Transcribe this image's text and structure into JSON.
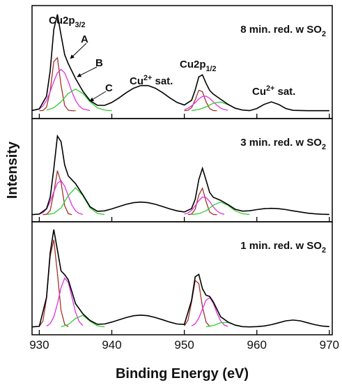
{
  "chart_data": [
    {
      "type": "line",
      "label": {
        "text": "8 min. red. w SO",
        "sub": "2"
      },
      "annotations": [
        {
          "text": "Cu2p",
          "sub": "3/2"
        },
        "A",
        "B",
        "C",
        {
          "text": "Cu",
          "sup": "2+",
          "after": " sat."
        },
        {
          "text": "Cu2p",
          "sub": "1/2"
        },
        {
          "text": "Cu",
          "sup": "2+",
          "after": " sat."
        }
      ],
      "xlim": [
        929,
        970.4
      ],
      "ylim": [
        0,
        115
      ],
      "series": [
        {
          "color": "#000000",
          "x": [
            928,
            929,
            930,
            931,
            931.5,
            932,
            932.5,
            933,
            933.5,
            934,
            935,
            936,
            937,
            938,
            939,
            940,
            941,
            942,
            943,
            944,
            945,
            946,
            947,
            948,
            949,
            950,
            951,
            951.5,
            952,
            952.5,
            953,
            953.5,
            954,
            955,
            956,
            957,
            958,
            959,
            960,
            961,
            962,
            963,
            964,
            965,
            966,
            967,
            968,
            969,
            970
          ],
          "values": [
            8,
            8.2,
            9.8,
            22.7,
            48.5,
            90.7,
            106,
            85,
            65,
            55.8,
            40.7,
            27.9,
            18.3,
            13.5,
            13.4,
            16.4,
            21.1,
            26.4,
            30.9,
            33.6,
            33.6,
            30.9,
            26.4,
            21.1,
            16.4,
            13.8,
            18.6,
            29.1,
            42.5,
            44.5,
            35.9,
            28.6,
            24.9,
            19.7,
            14.6,
            10.6,
            8.7,
            8.1,
            10.2,
            14.4,
            17,
            14.4,
            10.2,
            8.4,
            8.2,
            8,
            8,
            8,
            8
          ]
        },
        {
          "color": "#a0332a",
          "x": [
            930,
            930.5,
            931,
            931.5,
            932,
            932.5,
            933,
            933.5,
            934,
            934.5,
            935
          ],
          "values": [
            8,
            8.3,
            11.6,
            28,
            58,
            62,
            34,
            13.4,
            8.5,
            8,
            8
          ]
        },
        {
          "color": "#e030e0",
          "x": [
            929,
            930,
            930.5,
            931,
            931.5,
            932,
            932.5,
            933,
            933.5,
            934,
            934.5,
            935,
            935.5,
            936,
            937
          ],
          "values": [
            8.2,
            9.8,
            12.8,
            18.5,
            27.2,
            37.7,
            46.5,
            50,
            46.5,
            37.7,
            27.2,
            18.5,
            12.8,
            9.8,
            8.2
          ]
        },
        {
          "color": "#33cc33",
          "x": [
            931,
            932,
            933,
            934,
            935,
            936,
            937,
            938,
            939,
            940
          ],
          "values": [
            8.6,
            11,
            17,
            25.6,
            30,
            25.6,
            17,
            11,
            8.6,
            8
          ]
        },
        {
          "color": "#a0332a",
          "x": [
            950,
            950.5,
            951,
            951.5,
            952,
            952.5,
            953,
            953.5,
            954,
            954.5
          ],
          "values": [
            8,
            8.4,
            11,
            19.1,
            28.8,
            27.4,
            17,
            10.1,
            8.2,
            8
          ]
        },
        {
          "color": "#e030e0",
          "x": [
            950,
            950.5,
            951,
            951.5,
            952,
            952.5,
            953,
            953.5,
            954,
            954.5,
            955,
            955.5,
            956
          ],
          "values": [
            9,
            10.4,
            12.9,
            16.3,
            20,
            22.5,
            22.8,
            20.6,
            17.1,
            13.5,
            10.8,
            9.2,
            8.4
          ]
        },
        {
          "color": "#33cc33",
          "x": [
            951,
            952,
            953,
            954,
            955,
            956,
            957,
            958,
            959
          ],
          "values": [
            8.2,
            9.2,
            11.9,
            15.6,
            16.9,
            14.2,
            10.6,
            8.7,
            8.1
          ]
        }
      ]
    },
    {
      "type": "line",
      "label": {
        "text": "3 min. red. w SO",
        "sub": "2"
      },
      "ylabel": "Intensity",
      "xlim": [
        929,
        970.4
      ],
      "ylim": [
        0,
        115
      ],
      "series": [
        {
          "color": "#000000",
          "x": [
            928,
            929,
            930,
            931,
            931.5,
            932,
            932.5,
            933,
            933.5,
            934,
            935,
            936,
            937,
            938,
            939,
            940,
            941,
            942,
            943,
            944,
            945,
            946,
            947,
            948,
            949,
            950,
            951,
            951.5,
            952,
            952.5,
            953,
            953.5,
            954,
            955,
            956,
            957,
            958,
            959,
            960,
            961,
            962,
            963,
            964,
            965,
            966,
            967,
            968,
            969,
            970
          ],
          "values": [
            8,
            8,
            8.6,
            14.6,
            27.1,
            58.9,
            95.5,
            89.3,
            63.3,
            51.1,
            42.5,
            30.1,
            16.8,
            11.7,
            12.2,
            14.4,
            17,
            19.5,
            21.3,
            22,
            21.3,
            19.5,
            17,
            14.4,
            12.2,
            10.9,
            14.7,
            24.9,
            47,
            59.6,
            46.3,
            32.6,
            27.3,
            23.9,
            19.3,
            14,
            11.9,
            12.3,
            13.6,
            14.6,
            15,
            14.6,
            13.6,
            12.2,
            10.9,
            9.7,
            8.9,
            8.4,
            8.2
          ]
        },
        {
          "color": "#a0332a",
          "x": [
            930.5,
            931,
            931.5,
            932,
            932.5,
            933,
            933.5,
            934,
            934.5
          ],
          "values": [
            8,
            8.3,
            12.4,
            32.3,
            57,
            44,
            17.9,
            9,
            8
          ]
        },
        {
          "color": "#e030e0",
          "x": [
            930,
            930.5,
            931,
            931.5,
            932,
            932.5,
            933,
            933.5,
            934,
            934.5,
            935,
            935.5,
            936
          ],
          "values": [
            8.6,
            10.1,
            14.2,
            22.3,
            33.3,
            43.1,
            45.8,
            39.7,
            28.9,
            18.5,
            12.2,
            9.3,
            8.3
          ]
        },
        {
          "color": "#33cc33",
          "x": [
            931,
            932,
            933,
            934,
            935,
            936,
            937,
            938,
            939
          ],
          "values": [
            8.1,
            9.3,
            15.5,
            29.2,
            38,
            29.2,
            15.5,
            9.3,
            8.1
          ]
        },
        {
          "color": "#a0332a",
          "x": [
            950.5,
            951,
            951.5,
            952,
            952.5,
            953,
            953.5,
            954,
            954.5
          ],
          "values": [
            8,
            8.6,
            13.9,
            29.8,
            37.4,
            22.6,
            10.7,
            8.2,
            8
          ]
        },
        {
          "color": "#e030e0",
          "x": [
            950,
            950.5,
            951,
            951.5,
            952,
            952.5,
            953,
            953.5,
            954,
            954.5,
            955,
            955.5
          ],
          "values": [
            8.5,
            9.8,
            12.7,
            17.7,
            23.6,
            27.6,
            27.1,
            22.5,
            16.6,
            12,
            9.4,
            8.4
          ]
        },
        {
          "color": "#33cc33",
          "x": [
            951,
            952,
            953,
            954,
            955,
            956,
            957,
            958,
            959
          ],
          "values": [
            8.1,
            9,
            12.3,
            18.4,
            22,
            18.4,
            12.3,
            9,
            8.1
          ]
        }
      ]
    },
    {
      "type": "line",
      "label": {
        "text": "1 min. red. w SO",
        "sub": "2"
      },
      "xlabel": "Binding Energy (eV)",
      "xlim": [
        929,
        970.4
      ],
      "ylim": [
        0,
        115
      ],
      "xticks": [
        930,
        940,
        950,
        960,
        970
      ],
      "series": [
        {
          "color": "#000000",
          "x": [
            928,
            929,
            930,
            931,
            931.5,
            932,
            932.5,
            933,
            933.5,
            934,
            935,
            936,
            937,
            938,
            939,
            940,
            941,
            942,
            943,
            944,
            945,
            946,
            947,
            948,
            949,
            950,
            951,
            951.5,
            952,
            952.5,
            953,
            953.5,
            954,
            955,
            956,
            957,
            958,
            959,
            960,
            961,
            962,
            963,
            964,
            965,
            966,
            967,
            968,
            969,
            970
          ],
          "values": [
            8,
            8,
            8.6,
            38.1,
            83.3,
            107.1,
            86.2,
            65,
            61.2,
            55.9,
            31.7,
            21.4,
            14.6,
            10.7,
            11,
            12.9,
            15.3,
            17.6,
            19.4,
            20,
            19.4,
            17.6,
            15.3,
            12.9,
            11,
            10.5,
            35,
            59,
            61.5,
            46.9,
            40.3,
            39,
            33.4,
            18.4,
            13.1,
            9.9,
            8.3,
            8,
            8.3,
            8.9,
            10.3,
            12.2,
            14.2,
            15,
            14.2,
            12.2,
            10.3,
            8.9,
            8.3
          ]
        },
        {
          "color": "#a0332a",
          "x": [
            930,
            930.5,
            931,
            931.5,
            932,
            932.5,
            933,
            933.5,
            934
          ],
          "values": [
            8.6,
            13.9,
            37.3,
            80,
            96.8,
            62.6,
            24.8,
            10.6,
            8.2
          ]
        },
        {
          "color": "#e030e0",
          "x": [
            931,
            931.5,
            932,
            932.5,
            933,
            933.5,
            934,
            934.5,
            935,
            935.5,
            936
          ],
          "values": [
            8.8,
            11.3,
            18.3,
            31.6,
            48,
            57.7,
            53.3,
            38.3,
            22.9,
            13.4,
            9.4
          ]
        },
        {
          "color": "#33cc33",
          "x": [
            933,
            934,
            935,
            936,
            937,
            938,
            939
          ],
          "values": [
            8.2,
            10.4,
            16.7,
            19.8,
            13.8,
            9.1,
            8
          ]
        },
        {
          "color": "#a0332a",
          "x": [
            950,
            950.5,
            951,
            951.5,
            952,
            952.5,
            953,
            953.5
          ],
          "values": [
            8.9,
            14.8,
            33.3,
            55.3,
            52.1,
            28.5,
            12.8,
            8.6
          ]
        },
        {
          "color": "#e030e0",
          "x": [
            951,
            951.5,
            952,
            952.5,
            953,
            953.5,
            954,
            954.5,
            955,
            955.5,
            956
          ],
          "values": [
            8.9,
            11.2,
            17,
            26.2,
            35.2,
            37.8,
            32,
            22.2,
            14.2,
            10,
            8.5
          ]
        },
        {
          "color": "#33cc33",
          "x": [
            953,
            954,
            955,
            956,
            957,
            958
          ],
          "values": [
            8.2,
            9.4,
            12.2,
            12.6,
            9.9,
            8.3
          ]
        }
      ]
    }
  ]
}
